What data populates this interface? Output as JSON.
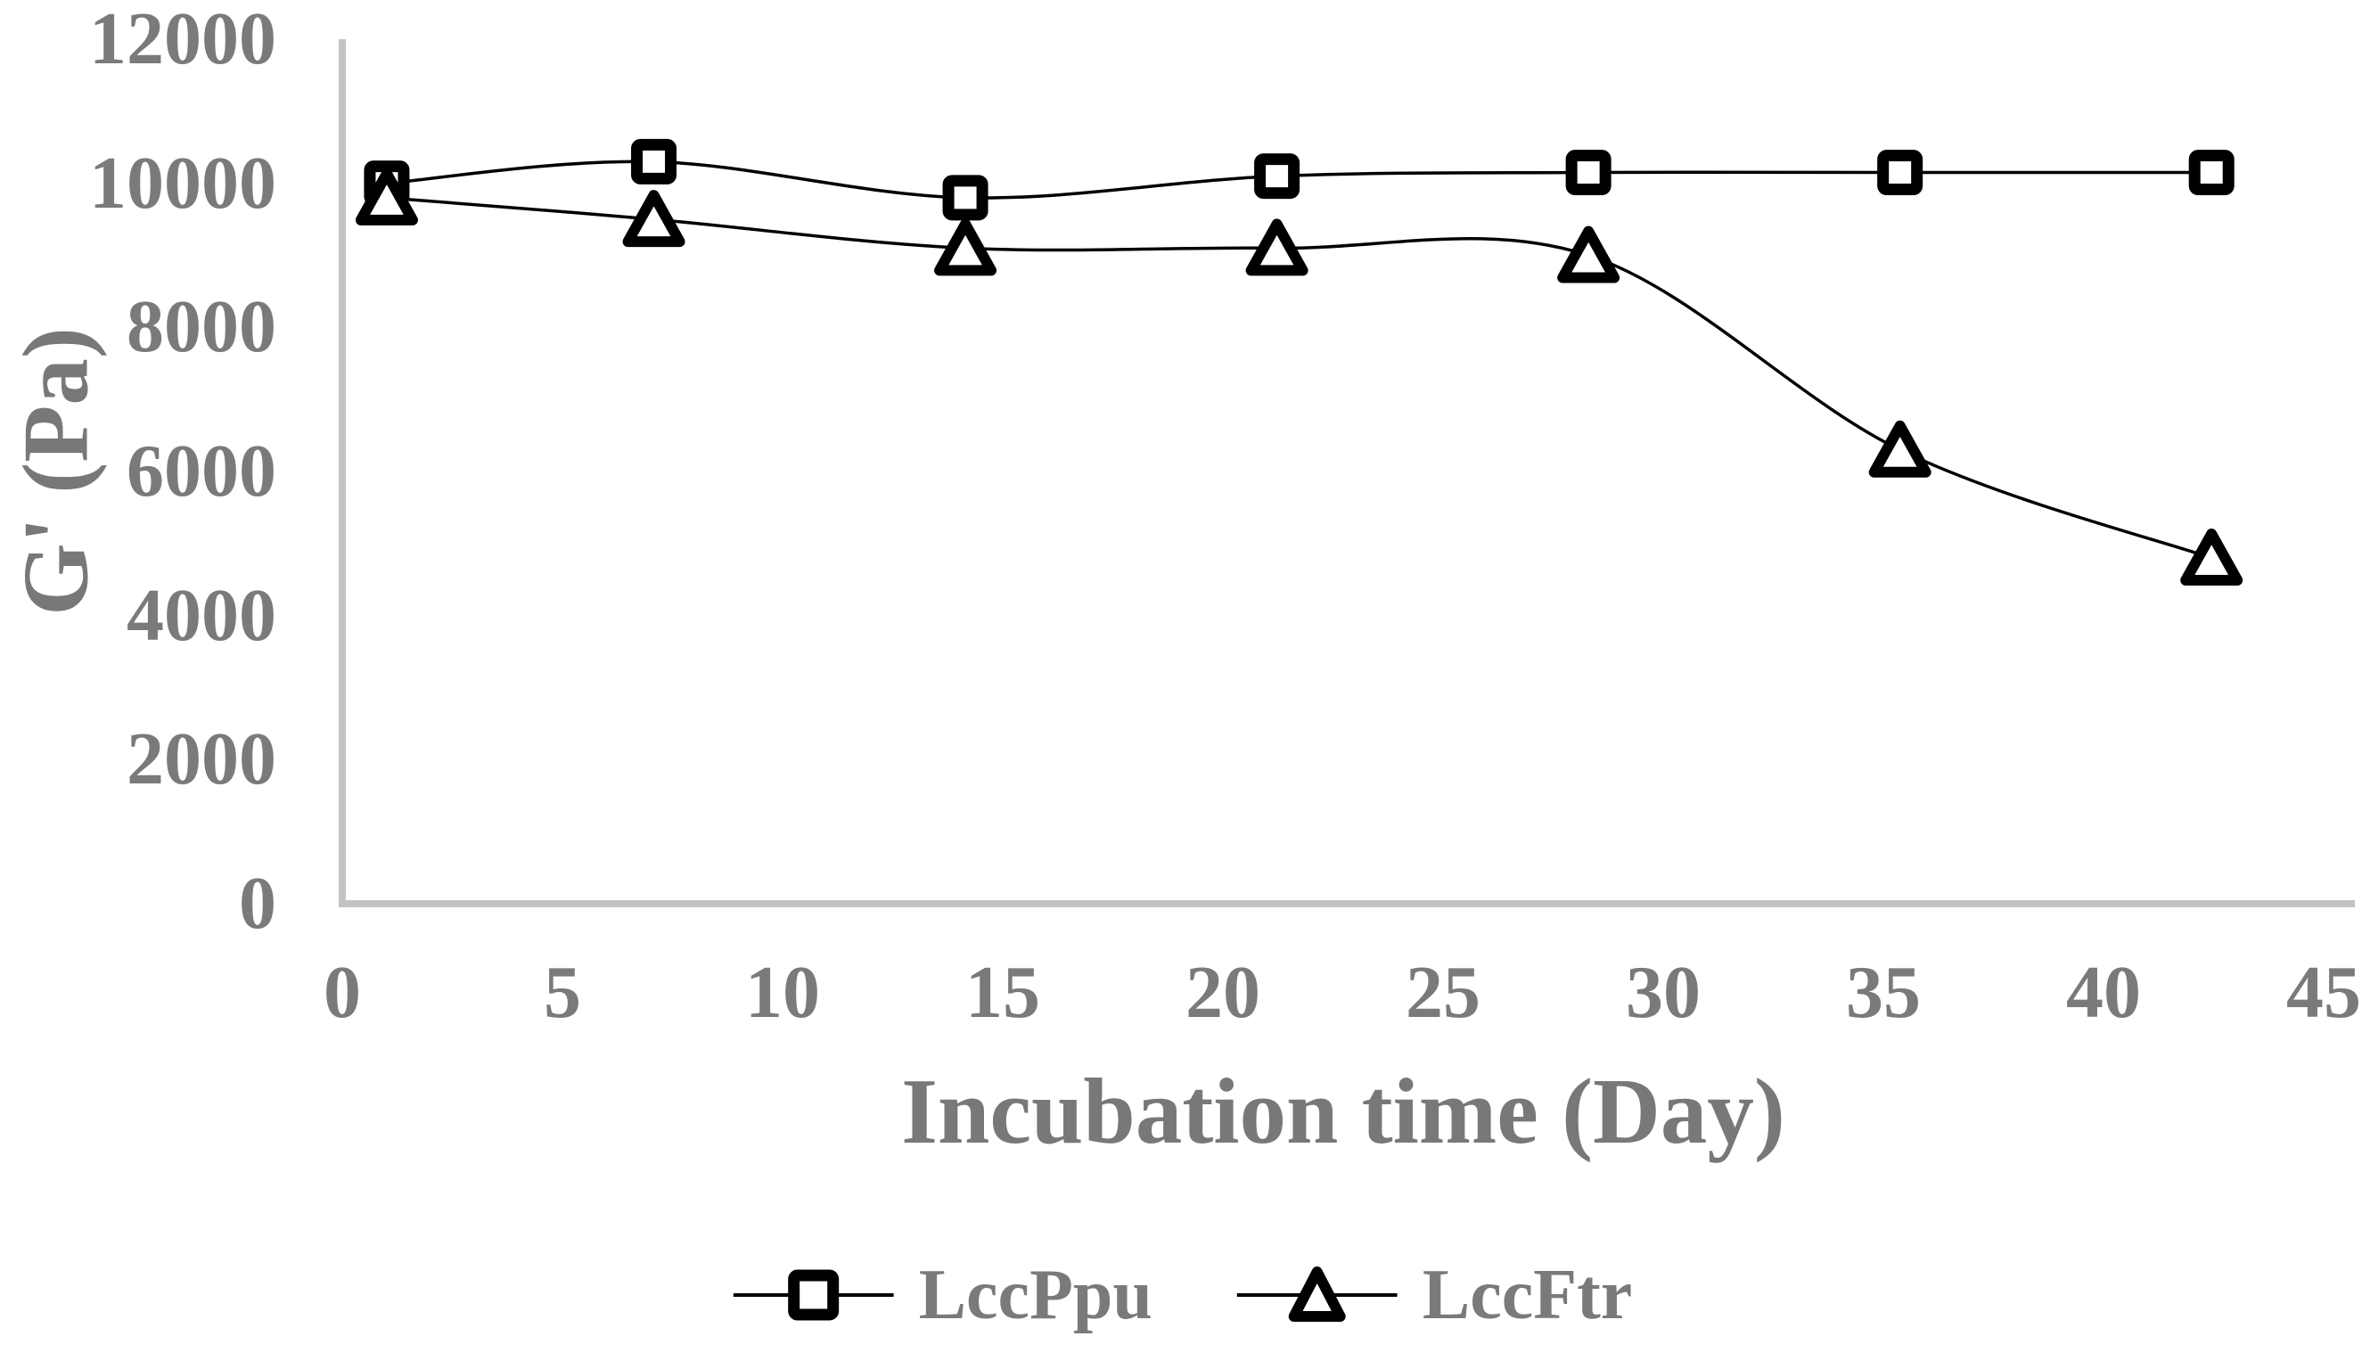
{
  "chart_data": {
    "type": "line",
    "title": "",
    "xlabel": "Incubation time (Day)",
    "ylabel": "G' (Pa)",
    "xlim": [
      0,
      45
    ],
    "ylim": [
      0,
      12000
    ],
    "grid": false,
    "legend_position": "bottom-center",
    "x_ticks": [
      0,
      5,
      10,
      15,
      20,
      25,
      30,
      35,
      40,
      45
    ],
    "y_ticks": [
      0,
      2000,
      4000,
      6000,
      8000,
      10000,
      12000
    ],
    "x_tick_labels": [
      "0",
      "5",
      "10",
      "15",
      "20",
      "25",
      "30",
      "35",
      "40",
      "45"
    ],
    "y_tick_labels_top_to_bottom": [
      "12000",
      "10000",
      "8000",
      "6000",
      "4000",
      "2000",
      "0"
    ],
    "x": [
      1,
      7,
      14,
      21,
      28,
      35,
      42
    ],
    "series": [
      {
        "name": "LccPpu",
        "marker": "square",
        "line_style": "smooth",
        "color": "#000000",
        "values": [
          10000,
          10300,
          9800,
          10100,
          10150,
          10150,
          10150
        ]
      },
      {
        "name": "LccFtr",
        "marker": "triangle",
        "line_style": "smooth",
        "color": "#000000",
        "values": [
          9800,
          9500,
          9100,
          9100,
          9000,
          6300,
          4800
        ]
      }
    ],
    "colors": {
      "tick_text": "#7a7a7a",
      "axis_line": "#c3c3c3",
      "series_line": "#000000",
      "marker_fill": "#ffffff"
    }
  }
}
